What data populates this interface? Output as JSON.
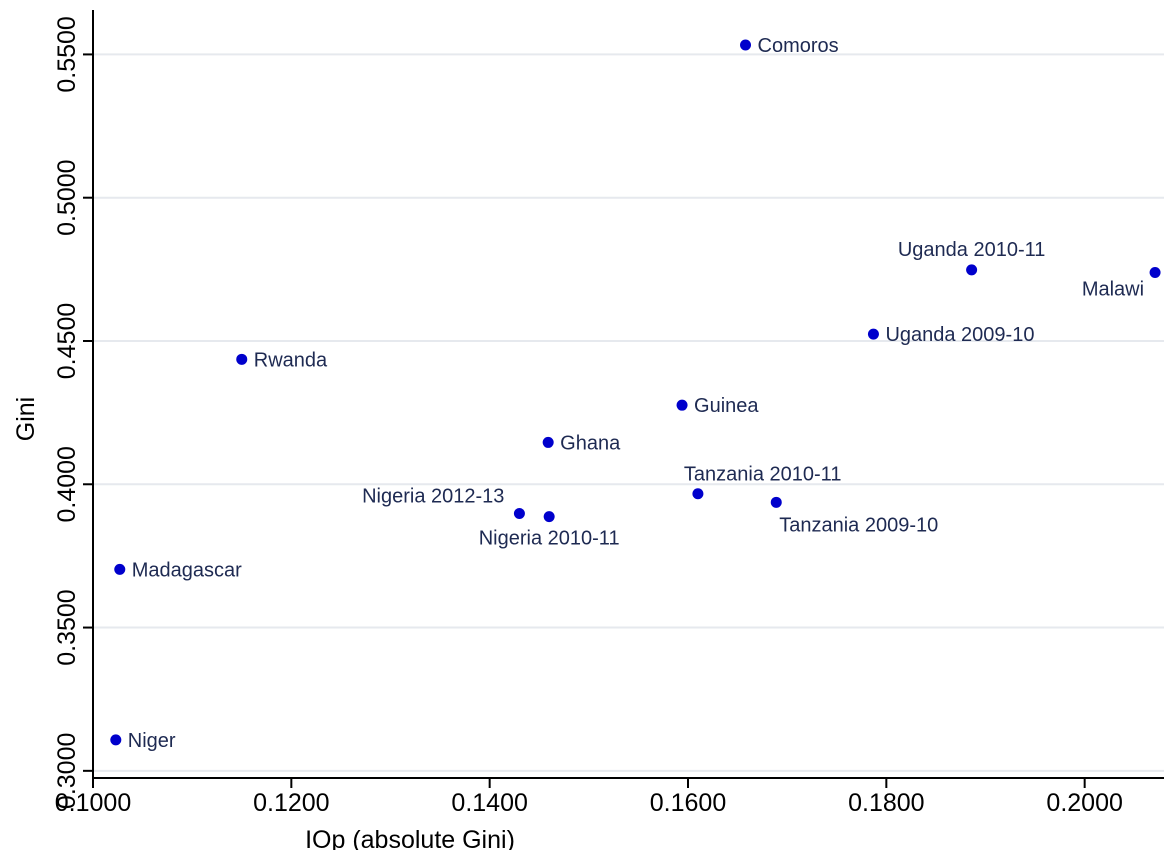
{
  "chart_data": {
    "type": "scatter",
    "title": "",
    "xlabel": "IOp (absolute Gini)",
    "ylabel": "Gini",
    "xlim": [
      0.1,
      0.208
    ],
    "ylim": [
      0.2975,
      0.5655
    ],
    "x_ticks": [
      {
        "value": 0.1,
        "label": "0.1000"
      },
      {
        "value": 0.12,
        "label": "0.1200"
      },
      {
        "value": 0.14,
        "label": "0.1400"
      },
      {
        "value": 0.16,
        "label": "0.1600"
      },
      {
        "value": 0.18,
        "label": "0.1800"
      },
      {
        "value": 0.2,
        "label": "0.2000"
      }
    ],
    "y_ticks": [
      {
        "value": 0.3,
        "label": "0.3000"
      },
      {
        "value": 0.35,
        "label": "0.3500"
      },
      {
        "value": 0.4,
        "label": "0.4000"
      },
      {
        "value": 0.45,
        "label": "0.4500"
      },
      {
        "value": 0.5,
        "label": "0.5000"
      },
      {
        "value": 0.55,
        "label": "0.5500"
      }
    ],
    "grid": true,
    "point_color": "#0000cc",
    "points": [
      {
        "label": "Comoros",
        "x": 0.1658,
        "y": 0.5533,
        "label_pos": "right"
      },
      {
        "label": "Uganda 2010-11",
        "x": 0.1886,
        "y": 0.4748,
        "label_pos": "above"
      },
      {
        "label": "Malawi",
        "x": 0.2071,
        "y": 0.4739,
        "label_pos": "below-left"
      },
      {
        "label": "Uganda 2009-10",
        "x": 0.1787,
        "y": 0.4524,
        "label_pos": "right"
      },
      {
        "label": "Rwanda",
        "x": 0.115,
        "y": 0.4436,
        "label_pos": "right"
      },
      {
        "label": "Guinea",
        "x": 0.1594,
        "y": 0.4276,
        "label_pos": "right"
      },
      {
        "label": "Ghana",
        "x": 0.1459,
        "y": 0.4146,
        "label_pos": "right"
      },
      {
        "label": "Tanzania 2010-11",
        "x": 0.161,
        "y": 0.3967,
        "label_pos": "above-right"
      },
      {
        "label": "Tanzania 2009-10",
        "x": 0.1689,
        "y": 0.3937,
        "label_pos": "below-right"
      },
      {
        "label": "Nigeria 2012-13",
        "x": 0.143,
        "y": 0.3898,
        "label_pos": "above-left"
      },
      {
        "label": "Nigeria 2010-11",
        "x": 0.146,
        "y": 0.3887,
        "label_pos": "below"
      },
      {
        "label": "Madagascar",
        "x": 0.1027,
        "y": 0.3703,
        "label_pos": "right"
      },
      {
        "label": "Niger",
        "x": 0.1023,
        "y": 0.3108,
        "label_pos": "right"
      }
    ]
  }
}
